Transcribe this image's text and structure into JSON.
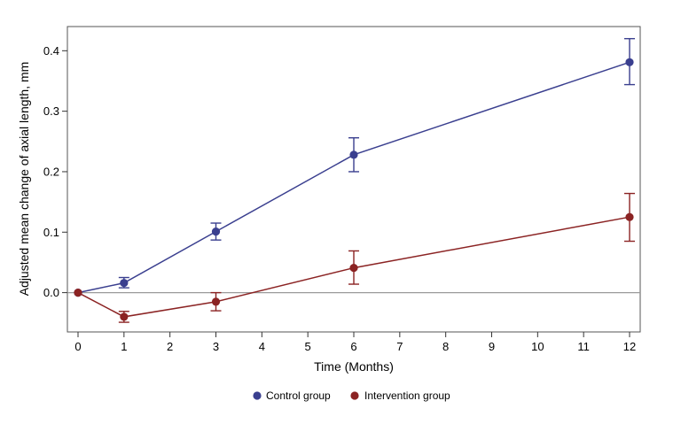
{
  "chart_data": {
    "type": "line",
    "title": "",
    "xlabel": "Time (Months)",
    "ylabel": "Adjusted mean change of axial length, mm",
    "xlim": [
      0,
      12
    ],
    "ylim": [
      -0.065,
      0.44
    ],
    "x_ticks": [
      0,
      1,
      2,
      3,
      4,
      5,
      6,
      7,
      8,
      9,
      10,
      11,
      12
    ],
    "y_ticks": [
      0.0,
      0.1,
      0.2,
      0.3,
      0.4
    ],
    "y_tick_labels": [
      "0.0",
      "0.1",
      "0.2",
      "0.3",
      "0.4"
    ],
    "reference_line_y": 0,
    "grid": false,
    "legend_position": "bottom-center",
    "series": [
      {
        "name": "Control group",
        "color": "#3a3f8f",
        "x": [
          0,
          1,
          3,
          6,
          12
        ],
        "values": [
          0.0,
          0.016,
          0.101,
          0.228,
          0.381
        ],
        "error_low": [
          0.0,
          0.008,
          0.087,
          0.2,
          0.344
        ],
        "error_high": [
          0.0,
          0.025,
          0.115,
          0.256,
          0.42
        ]
      },
      {
        "name": "Intervention group",
        "color": "#8b2323",
        "x": [
          0,
          1,
          3,
          6,
          12
        ],
        "values": [
          0.0,
          -0.04,
          -0.015,
          0.041,
          0.125
        ],
        "error_low": [
          0.0,
          -0.049,
          -0.03,
          0.014,
          0.085
        ],
        "error_high": [
          0.0,
          -0.031,
          0.0,
          0.069,
          0.164
        ]
      }
    ]
  }
}
